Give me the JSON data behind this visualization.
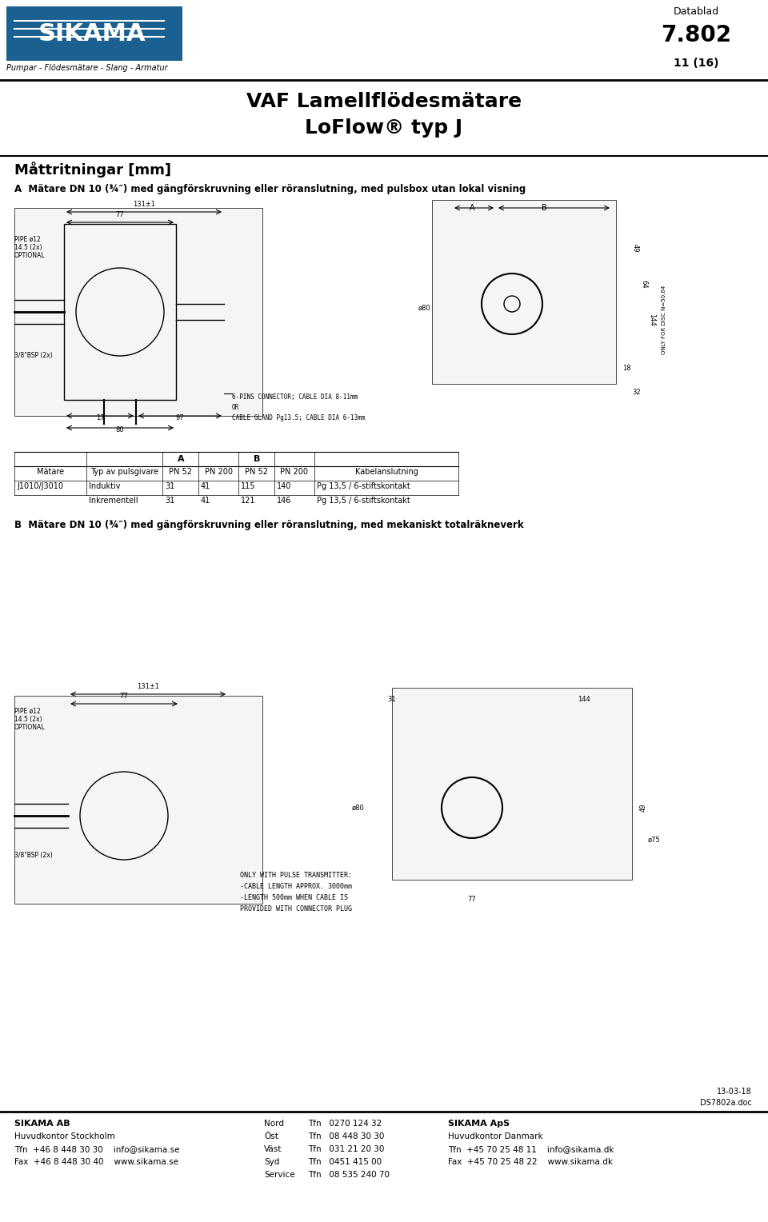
{
  "page_width": 9.6,
  "page_height": 15.28,
  "bg_color": "#ffffff",
  "logo_text": "SIKAMA",
  "logo_subtitle": "Pumpar - Flödesmätare - Slang - Armatur",
  "datablad_label": "Datablad",
  "datablad_number": "7.802",
  "datablad_page": "11 (16)",
  "title_line1": "VAF Lamellflödesmätare",
  "title_line2": "LoFlow® typ J",
  "section_header": "Måttritningar [mm]",
  "section_A_label": "A",
  "section_A_text": "Mätare DN 10 (¾″) med gängförskruvning eller röranslutning, med pulsbox utan lokal visning",
  "table_headers": [
    "",
    "Typ av pulsgivare",
    "A",
    "",
    "B",
    "",
    "Kabelanslutning"
  ],
  "table_sub_headers": [
    "Mätare",
    "",
    "PN 52",
    "PN 200",
    "PN 52",
    "PN 200",
    ""
  ],
  "table_row1": [
    "J1010/J3010",
    "Induktiv",
    "31",
    "41",
    "115",
    "140",
    "Pg 13,5 / 6-stiftskontakt"
  ],
  "table_row2": [
    "",
    "Inkrementell",
    "31",
    "41",
    "121",
    "146",
    "Pg 13,5 / 6-stiftskontakt"
  ],
  "section_B_label": "B",
  "section_B_text": "Mätare DN 10 (¾″) med gängförskruvning eller röranslutning, med mekaniskt totalräkneverk",
  "date_text": "13-03-18",
  "doc_text": "DS7802a.doc",
  "footer_col1_bold": "SIKAMA AB",
  "footer_col1_line1": "Huvudkontor Stockholm",
  "footer_col1_line2": "Tfn  +46 8 448 30 30    info@sikama.se",
  "footer_col1_line3": "Fax  +46 8 448 30 40    www.sikama.se",
  "footer_col2_label1": "Nord",
  "footer_col2_val1": "Tfn   0270 124 32",
  "footer_col2_label2": "Öst",
  "footer_col2_val2": "Tfn   08 448 30 30",
  "footer_col2_label3": "Väst",
  "footer_col2_val3": "Tfn   031 21 20 30",
  "footer_col2_label4": "Syd",
  "footer_col2_val4": "Tfn   0451 415 00",
  "footer_col2_label5": "Service",
  "footer_col2_val5": "Tfn   08 535 240 70",
  "footer_col3_bold": "SIKAMA ApS",
  "footer_col3_line1": "Huvudkontor Danmark",
  "footer_col3_line2": "Tfn  +45 70 25 48 11    info@sikama.dk",
  "footer_col3_line3": "Fax  +45 70 25 48 22    www.sikama.dk",
  "header_bar_color": "#1a6090",
  "text_color": "#000000",
  "line_color": "#000000"
}
